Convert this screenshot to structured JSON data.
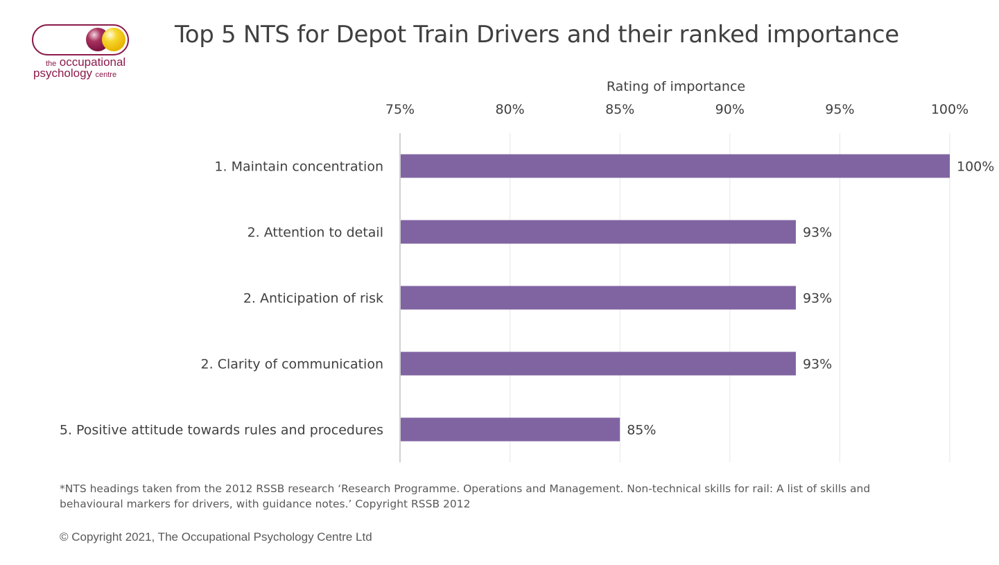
{
  "logo": {
    "line1_small": "the",
    "line1_big": "occupational",
    "line2_big": "psychology",
    "line2_small": "centre",
    "colors": {
      "maroon": "#8b1a4a",
      "yellow": "#f2c811"
    }
  },
  "chart_data": {
    "type": "bar",
    "orientation": "horizontal",
    "title": "Top 5 NTS for Depot Train Drivers and their ranked importance",
    "xlabel": "Rating of importance",
    "ylabel": "",
    "xlim": [
      75,
      100
    ],
    "x_ticks": [
      75,
      80,
      85,
      90,
      95,
      100
    ],
    "x_tick_labels": [
      "75%",
      "80%",
      "85%",
      "90%",
      "95%",
      "100%"
    ],
    "axis_position": "top",
    "grid": true,
    "categories": [
      "1. Maintain concentration",
      "2. Attention to detail",
      "2. Anticipation of risk",
      "2. Clarity of communication",
      "5. Positive attitude towards rules and procedures"
    ],
    "values": [
      100,
      93,
      93,
      93,
      85
    ],
    "data_labels": [
      "100%",
      "93%",
      "93%",
      "93%",
      "85%"
    ],
    "bar_color": "#8064a2"
  },
  "footnote": "*NTS headings taken from the 2012 RSSB research ‘Research Programme. Operations and Management. Non-technical skills for rail: A list of skills and behavioural markers for drivers, with guidance notes.’ Copyright RSSB 2012",
  "copyright": "© Copyright 2021, The Occupational Psychology Centre Ltd"
}
